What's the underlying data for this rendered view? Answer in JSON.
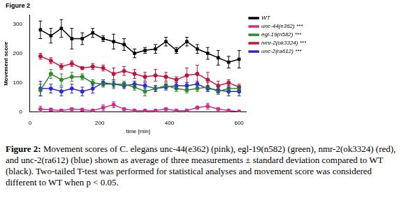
{
  "figure_label": "Figure 2",
  "caption_label": "Figure 2:",
  "caption": "Movement scores of C. elegans unc-44(e362) (pink), egl-19(n582) (green), nmr-2(ok3324) (red), and unc-2(ra612) (blue) shown as average of three measurements ± standard deviation compared to WT (black). Two-tailed T-test was performed for statistical analyses and movement score was considered different to WT when p < 0.05.",
  "chart_data": {
    "type": "line",
    "x_label": "time [min]",
    "y_label": "Movement score",
    "x": [
      30,
      60,
      90,
      120,
      150,
      180,
      210,
      240,
      270,
      300,
      330,
      360,
      390,
      420,
      450,
      480,
      510,
      540,
      570,
      600
    ],
    "xlim": [
      0,
      620
    ],
    "xticks": [
      0,
      200,
      400,
      600
    ],
    "ylim": [
      0,
      330
    ],
    "yticks": [
      0,
      100,
      200,
      300
    ],
    "grid": false,
    "legend": "right",
    "series": [
      {
        "name": "WT",
        "color": "#000000",
        "marker": "square",
        "values": [
          280,
          260,
          285,
          250,
          250,
          270,
          250,
          240,
          230,
          200,
          210,
          215,
          240,
          210,
          240,
          215,
          200,
          185,
          170,
          180
        ],
        "errors": [
          30,
          25,
          30,
          35,
          20,
          15,
          10,
          25,
          20,
          15,
          10,
          15,
          15,
          10,
          15,
          15,
          20,
          25,
          20,
          30
        ]
      },
      {
        "name": "unc-44(e362) ***",
        "color": "#cc2f8f",
        "marker": "circle",
        "values": [
          10,
          8,
          5,
          10,
          8,
          5,
          15,
          25,
          10,
          5,
          5,
          5,
          10,
          5,
          5,
          15,
          20,
          10,
          5,
          2
        ],
        "errors": [
          10,
          5,
          5,
          5,
          5,
          5,
          10,
          10,
          5,
          5,
          3,
          3,
          5,
          3,
          3,
          5,
          10,
          5,
          3,
          2
        ]
      },
      {
        "name": "egl-19(n582) ***",
        "color": "#2e8b2e",
        "marker": "circle",
        "values": [
          75,
          130,
          110,
          120,
          120,
          100,
          95,
          95,
          95,
          85,
          70,
          80,
          90,
          80,
          75,
          80,
          85,
          70,
          80,
          80
        ],
        "errors": [
          20,
          15,
          20,
          15,
          10,
          10,
          10,
          15,
          10,
          10,
          15,
          10,
          10,
          10,
          10,
          10,
          15,
          10,
          10,
          10
        ]
      },
      {
        "name": "nmr-2(ok3324) ***",
        "color": "#c0143c",
        "marker": "circle",
        "values": [
          190,
          175,
          155,
          165,
          150,
          155,
          150,
          130,
          140,
          130,
          120,
          125,
          120,
          110,
          125,
          130,
          110,
          90,
          100,
          85
        ],
        "errors": [
          10,
          10,
          10,
          10,
          5,
          10,
          10,
          20,
          15,
          15,
          15,
          20,
          15,
          10,
          25,
          30,
          25,
          15,
          10,
          10
        ]
      },
      {
        "name": "unc-2(ra612) ***",
        "color": "#2a2ad0",
        "marker": "circle",
        "values": [
          80,
          80,
          70,
          80,
          70,
          80,
          100,
          95,
          90,
          95,
          90,
          80,
          85,
          90,
          90,
          95,
          80,
          75,
          70,
          70
        ],
        "errors": [
          25,
          15,
          15,
          15,
          15,
          15,
          10,
          10,
          10,
          10,
          10,
          10,
          10,
          10,
          10,
          10,
          10,
          10,
          15,
          15
        ]
      }
    ]
  }
}
